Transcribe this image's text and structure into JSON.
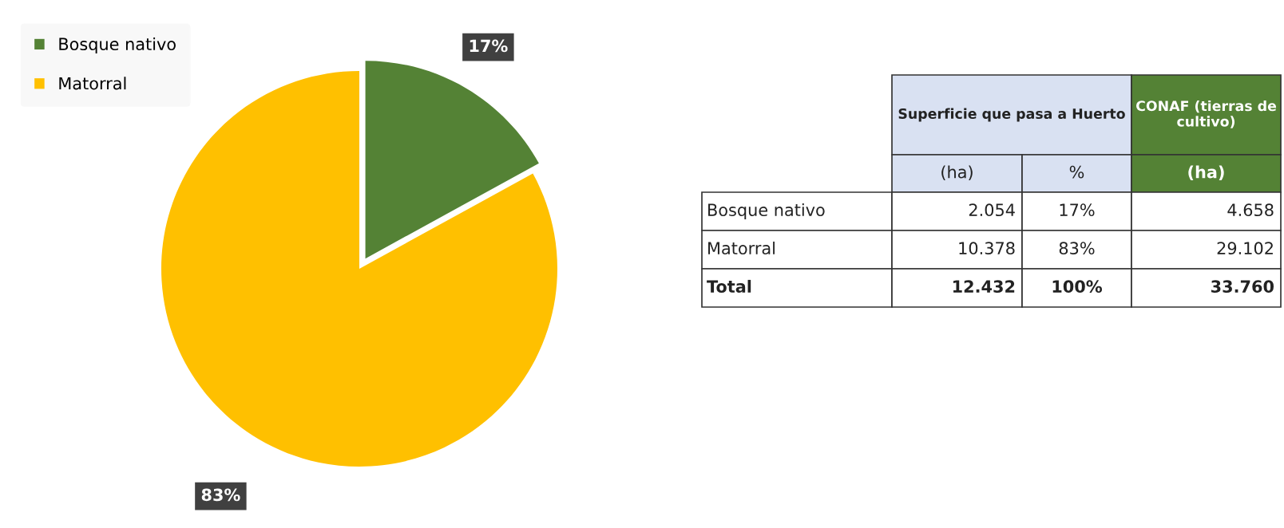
{
  "chart_data": [
    {
      "type": "pie",
      "categories": [
        "Bosque nativo",
        "Matorral"
      ],
      "values": [
        17,
        83
      ],
      "colors": [
        "#548235",
        "#ffc000"
      ],
      "value_labels": [
        "17%",
        "83%"
      ],
      "legend": "top left"
    },
    {
      "type": "other",
      "annotations": [
        "Superficie que pasa a Huerto",
        "CONAF (tierras de cultivo)",
        "(ha)",
        "%",
        "(ha)",
        "Bosque nativo",
        "2.054",
        "17%",
        "4.658",
        "Matorral",
        "10.378",
        "83%",
        "29.102",
        "Total",
        "12.432",
        "100%",
        "33.760"
      ]
    }
  ]
}
